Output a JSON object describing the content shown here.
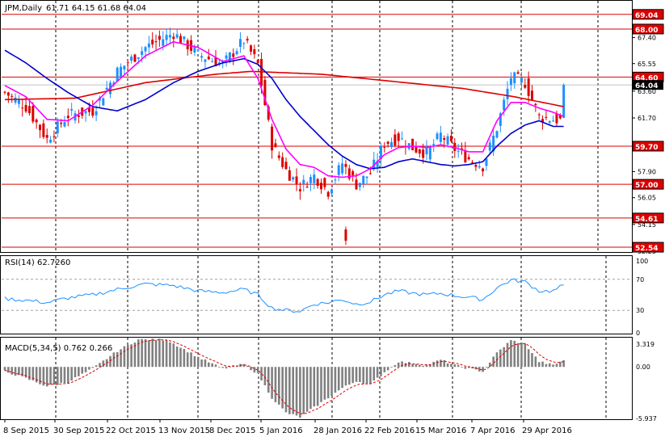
{
  "chart_data": [
    {
      "type": "candlestick",
      "panel": "price",
      "title": "JPM,Daily",
      "ohlc_readout": "61.71 64.15 61.68 64.04",
      "colors": {
        "up": "#1e90ff",
        "down": "#dd0000",
        "ma_fast": "#ff00ff",
        "ma_mid": "#0000cc",
        "ma_slow": "#dd0000",
        "hline": "#dd0000"
      },
      "ylim": [
        52.2,
        70.0
      ],
      "y_ticks": [
        "69.20",
        "67.40",
        "65.55",
        "63.60",
        "61.70",
        "59.80",
        "57.90",
        "56.05",
        "54.15",
        "52.25"
      ],
      "horizontal_levels": [
        {
          "value": 69.04,
          "label": "69.04"
        },
        {
          "value": 68.0,
          "label": "68.00"
        },
        {
          "value": 64.6,
          "label": "64.60"
        },
        {
          "value": 59.7,
          "label": "59.70"
        },
        {
          "value": 57.0,
          "label": "57.00"
        },
        {
          "value": 54.61,
          "label": "54.61"
        },
        {
          "value": 52.54,
          "label": "52.54"
        }
      ],
      "current_price": {
        "value": 64.04,
        "label": "64.04"
      },
      "x_labels": [
        "8 Sep 2015",
        "30 Sep 2015",
        "22 Oct 2015",
        "13 Nov 2015",
        "8 Dec 2015",
        "5 Jan 2016",
        "28 Jan 2016",
        "22 Feb 2016",
        "15 Mar 2016",
        "7 Apr 2016",
        "29 Apr 2016"
      ],
      "grid": true,
      "trend_waypoints": [
        [
          0,
          63.5
        ],
        [
          6,
          62.5
        ],
        [
          12,
          60.2
        ],
        [
          18,
          61.9
        ],
        [
          25,
          62.2
        ],
        [
          32,
          65.0
        ],
        [
          40,
          66.7
        ],
        [
          48,
          67.7
        ],
        [
          55,
          66.2
        ],
        [
          62,
          65.5
        ],
        [
          68,
          67.2
        ],
        [
          72,
          65.5
        ],
        [
          76,
          59.8
        ],
        [
          80,
          58.0
        ],
        [
          84,
          56.8
        ],
        [
          88,
          57.6
        ],
        [
          92,
          56.5
        ],
        [
          96,
          58.5
        ],
        [
          100,
          57.0
        ],
        [
          104,
          57.8
        ],
        [
          108,
          59.9
        ],
        [
          112,
          60.3
        ],
        [
          116,
          59.6
        ],
        [
          120,
          59.2
        ],
        [
          124,
          60.5
        ],
        [
          128,
          59.5
        ],
        [
          132,
          58.8
        ],
        [
          136,
          58.3
        ],
        [
          140,
          61.0
        ],
        [
          144,
          64.6
        ],
        [
          148,
          64.2
        ],
        [
          152,
          61.8
        ],
        [
          156,
          61.6
        ],
        [
          159,
          61.5
        ]
      ],
      "last_candle": {
        "open": 61.71,
        "high": 64.15,
        "low": 61.68,
        "close": 64.04
      },
      "ma_fast_points": [
        [
          0,
          64.0
        ],
        [
          6,
          63.2
        ],
        [
          12,
          61.6
        ],
        [
          18,
          61.5
        ],
        [
          25,
          62.6
        ],
        [
          32,
          64.3
        ],
        [
          40,
          66.1
        ],
        [
          48,
          67.1
        ],
        [
          55,
          66.7
        ],
        [
          62,
          65.7
        ],
        [
          68,
          66.1
        ],
        [
          72,
          64.5
        ],
        [
          76,
          61.6
        ],
        [
          80,
          59.5
        ],
        [
          84,
          58.4
        ],
        [
          88,
          58.2
        ],
        [
          92,
          57.6
        ],
        [
          96,
          57.5
        ],
        [
          100,
          57.6
        ],
        [
          104,
          58.1
        ],
        [
          108,
          59.1
        ],
        [
          112,
          59.6
        ],
        [
          116,
          59.7
        ],
        [
          120,
          59.6
        ],
        [
          124,
          59.8
        ],
        [
          128,
          59.6
        ],
        [
          132,
          59.3
        ],
        [
          136,
          59.3
        ],
        [
          140,
          61.5
        ],
        [
          144,
          62.8
        ],
        [
          148,
          62.8
        ],
        [
          152,
          62.4
        ],
        [
          156,
          62.1
        ],
        [
          159,
          61.8
        ]
      ],
      "ma_mid_points": [
        [
          0,
          66.5
        ],
        [
          6,
          65.6
        ],
        [
          12,
          64.5
        ],
        [
          18,
          63.5
        ],
        [
          25,
          62.5
        ],
        [
          32,
          62.2
        ],
        [
          40,
          63.0
        ],
        [
          48,
          64.2
        ],
        [
          55,
          65.0
        ],
        [
          62,
          65.6
        ],
        [
          68,
          65.9
        ],
        [
          72,
          65.5
        ],
        [
          76,
          64.5
        ],
        [
          80,
          63.0
        ],
        [
          84,
          61.8
        ],
        [
          88,
          60.8
        ],
        [
          92,
          59.8
        ],
        [
          96,
          59.0
        ],
        [
          100,
          58.4
        ],
        [
          104,
          58.1
        ],
        [
          108,
          58.2
        ],
        [
          112,
          58.6
        ],
        [
          116,
          58.8
        ],
        [
          120,
          58.6
        ],
        [
          124,
          58.4
        ],
        [
          128,
          58.3
        ],
        [
          132,
          58.4
        ],
        [
          136,
          58.6
        ],
        [
          140,
          59.7
        ],
        [
          144,
          60.6
        ],
        [
          148,
          61.2
        ],
        [
          152,
          61.5
        ],
        [
          156,
          61.1
        ],
        [
          159,
          61.1
        ]
      ],
      "ma_slow_points": [
        [
          0,
          63.0
        ],
        [
          20,
          63.1
        ],
        [
          40,
          64.2
        ],
        [
          60,
          64.8
        ],
        [
          70,
          65.0
        ],
        [
          90,
          64.8
        ],
        [
          110,
          64.3
        ],
        [
          130,
          63.8
        ],
        [
          145,
          63.2
        ],
        [
          159,
          62.5
        ]
      ]
    },
    {
      "type": "line",
      "panel": "oscillator",
      "title": "RSI(14) 62.7260",
      "ylim": [
        0,
        100
      ],
      "y_ticks": [
        "100",
        "70",
        "30",
        "0"
      ],
      "levels": [
        70,
        30
      ],
      "color": "#1e90ff",
      "waypoints": [
        [
          0,
          45
        ],
        [
          6,
          43
        ],
        [
          12,
          40
        ],
        [
          18,
          46
        ],
        [
          25,
          50
        ],
        [
          32,
          57
        ],
        [
          40,
          64
        ],
        [
          48,
          62
        ],
        [
          55,
          55
        ],
        [
          62,
          53
        ],
        [
          68,
          57
        ],
        [
          72,
          50
        ],
        [
          76,
          33
        ],
        [
          80,
          30
        ],
        [
          84,
          29
        ],
        [
          88,
          38
        ],
        [
          92,
          40
        ],
        [
          96,
          44
        ],
        [
          100,
          38
        ],
        [
          104,
          41
        ],
        [
          108,
          50
        ],
        [
          112,
          55
        ],
        [
          116,
          52
        ],
        [
          120,
          50
        ],
        [
          124,
          52
        ],
        [
          128,
          49
        ],
        [
          132,
          47
        ],
        [
          136,
          44
        ],
        [
          140,
          59
        ],
        [
          144,
          69
        ],
        [
          148,
          67
        ],
        [
          152,
          55
        ],
        [
          156,
          55
        ],
        [
          159,
          62.7
        ]
      ]
    },
    {
      "type": "bar",
      "panel": "oscillator",
      "title": "MACD(5,34,5) 0.762 0.266",
      "ylim": [
        -5.937,
        3.319
      ],
      "y_ticks": [
        "3.319",
        "0.00",
        "-5.937"
      ],
      "bar_color": "#808080",
      "signal_color": "#dd0000",
      "waypoints": [
        [
          0,
          -0.5
        ],
        [
          6,
          -1.3
        ],
        [
          12,
          -2.2
        ],
        [
          18,
          -1.7
        ],
        [
          25,
          -0.2
        ],
        [
          32,
          1.8
        ],
        [
          38,
          3.1
        ],
        [
          46,
          3.1
        ],
        [
          55,
          1.1
        ],
        [
          62,
          -0.2
        ],
        [
          68,
          0.3
        ],
        [
          72,
          -0.8
        ],
        [
          76,
          -3.5
        ],
        [
          80,
          -5.2
        ],
        [
          84,
          -5.7
        ],
        [
          88,
          -4.6
        ],
        [
          92,
          -3.5
        ],
        [
          96,
          -2.4
        ],
        [
          100,
          -1.6
        ],
        [
          104,
          -2.0
        ],
        [
          108,
          -0.6
        ],
        [
          112,
          0.6
        ],
        [
          116,
          0.4
        ],
        [
          120,
          0.2
        ],
        [
          124,
          0.8
        ],
        [
          128,
          0.2
        ],
        [
          132,
          -0.2
        ],
        [
          136,
          -0.5
        ],
        [
          140,
          1.6
        ],
        [
          144,
          3.0
        ],
        [
          148,
          2.6
        ],
        [
          152,
          0.6
        ],
        [
          156,
          0.2
        ],
        [
          159,
          0.76
        ]
      ]
    }
  ]
}
